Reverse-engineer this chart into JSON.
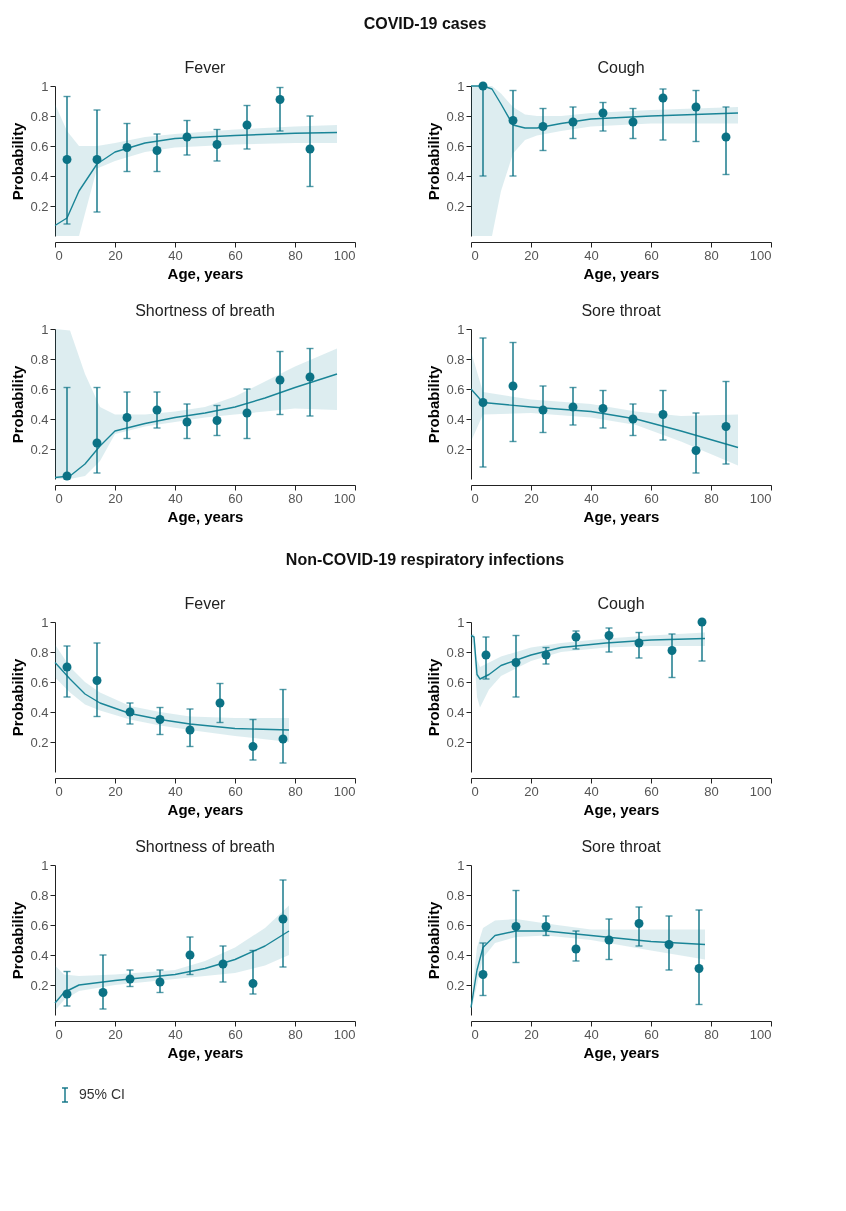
{
  "chart_data": [
    {
      "type": "scatter",
      "title": "Fever",
      "annotations": [
        "COVID-19 cases"
      ],
      "xlabel": "Age, years",
      "ylabel": "Probability",
      "xlim": [
        0,
        100
      ],
      "ylim": [
        0,
        1
      ],
      "xticks": [
        0,
        20,
        40,
        60,
        80,
        100
      ],
      "yticks": [
        0.2,
        0.4,
        0.6,
        0.8,
        1
      ],
      "series": [
        {
          "type": "line",
          "color": "#1a8597",
          "x": [
            0,
            4,
            8,
            14,
            20,
            30,
            40,
            60,
            80,
            94
          ],
          "values": [
            0.07,
            0.12,
            0.3,
            0.48,
            0.56,
            0.62,
            0.65,
            0.67,
            0.685,
            0.69
          ],
          "lower": [
            0,
            0,
            0,
            0.45,
            0.5,
            0.56,
            0.59,
            0.61,
            0.62,
            0.62
          ],
          "upper": [
            0.88,
            0.7,
            0.6,
            0.6,
            0.62,
            0.66,
            0.68,
            0.71,
            0.73,
            0.74
          ]
        },
        {
          "type": "scatter",
          "color": "#0b7285",
          "x": [
            4,
            14,
            24,
            34,
            44,
            54,
            64,
            75,
            85
          ],
          "values": [
            0.51,
            0.51,
            0.59,
            0.57,
            0.66,
            0.61,
            0.74,
            0.91,
            0.58
          ],
          "errors": [
            [
              0.08,
              0.93
            ],
            [
              0.16,
              0.84
            ],
            [
              0.43,
              0.75
            ],
            [
              0.43,
              0.68
            ],
            [
              0.54,
              0.77
            ],
            [
              0.5,
              0.71
            ],
            [
              0.58,
              0.87
            ],
            [
              0.7,
              0.99
            ],
            [
              0.33,
              0.8
            ]
          ]
        }
      ]
    },
    {
      "type": "scatter",
      "title": "Cough",
      "xlabel": "Age, years",
      "ylabel": "Probability",
      "xlim": [
        0,
        100
      ],
      "ylim": [
        0,
        1
      ],
      "xticks": [
        0,
        20,
        40,
        60,
        80,
        100
      ],
      "yticks": [
        0.2,
        0.4,
        0.6,
        0.8,
        1
      ],
      "series": [
        {
          "type": "line",
          "color": "#1a8597",
          "x": [
            0,
            4,
            7,
            10,
            14,
            18,
            22,
            30,
            40,
            60,
            89
          ],
          "values": [
            1,
            1,
            0.98,
            0.88,
            0.74,
            0.72,
            0.72,
            0.75,
            0.78,
            0.8,
            0.82
          ],
          "lower": [
            0,
            0,
            0,
            0.3,
            0.55,
            0.64,
            0.67,
            0.7,
            0.73,
            0.75,
            0.75
          ],
          "upper": [
            1,
            1,
            1,
            0.95,
            0.86,
            0.81,
            0.8,
            0.8,
            0.82,
            0.84,
            0.86
          ]
        },
        {
          "type": "scatter",
          "color": "#0b7285",
          "x": [
            4,
            14,
            24,
            34,
            44,
            54,
            64,
            75,
            85
          ],
          "values": [
            1,
            0.77,
            0.73,
            0.76,
            0.82,
            0.76,
            0.92,
            0.86,
            0.66
          ],
          "errors": [
            [
              0.4,
              1
            ],
            [
              0.4,
              0.97
            ],
            [
              0.57,
              0.85
            ],
            [
              0.65,
              0.86
            ],
            [
              0.7,
              0.89
            ],
            [
              0.65,
              0.85
            ],
            [
              0.64,
              0.98
            ],
            [
              0.63,
              0.97
            ],
            [
              0.41,
              0.86
            ]
          ]
        }
      ]
    },
    {
      "type": "scatter",
      "title": "Shortness of breath",
      "xlabel": "Age, years",
      "ylabel": "Probability",
      "xlim": [
        0,
        100
      ],
      "ylim": [
        0,
        1
      ],
      "xticks": [
        0,
        20,
        40,
        60,
        80,
        100
      ],
      "yticks": [
        0.2,
        0.4,
        0.6,
        0.8,
        1
      ],
      "series": [
        {
          "type": "line",
          "color": "#1a8597",
          "x": [
            0,
            5,
            10,
            15,
            20,
            30,
            40,
            50,
            60,
            70,
            80,
            94
          ],
          "values": [
            0.01,
            0.02,
            0.1,
            0.22,
            0.32,
            0.37,
            0.41,
            0.44,
            0.48,
            0.54,
            0.61,
            0.7
          ],
          "lower": [
            0,
            0,
            0.02,
            0.12,
            0.3,
            0.35,
            0.38,
            0.41,
            0.43,
            0.45,
            0.47,
            0.46
          ],
          "upper": [
            1,
            0.99,
            0.7,
            0.48,
            0.43,
            0.43,
            0.45,
            0.48,
            0.55,
            0.65,
            0.75,
            0.87
          ]
        },
        {
          "type": "scatter",
          "color": "#0b7285",
          "x": [
            4,
            14,
            24,
            34,
            44,
            54,
            64,
            75,
            85
          ],
          "values": [
            0.02,
            0.24,
            0.41,
            0.46,
            0.38,
            0.39,
            0.44,
            0.66,
            0.68
          ],
          "errors": [
            [
              0,
              0.61
            ],
            [
              0.04,
              0.61
            ],
            [
              0.27,
              0.58
            ],
            [
              0.34,
              0.58
            ],
            [
              0.27,
              0.5
            ],
            [
              0.29,
              0.49
            ],
            [
              0.27,
              0.6
            ],
            [
              0.43,
              0.85
            ],
            [
              0.42,
              0.87
            ]
          ]
        }
      ]
    },
    {
      "type": "scatter",
      "title": "Sore throat",
      "xlabel": "Age, years",
      "ylabel": "Probability",
      "xlim": [
        0,
        100
      ],
      "ylim": [
        0,
        1
      ],
      "xticks": [
        0,
        20,
        40,
        60,
        80,
        100
      ],
      "yticks": [
        0.2,
        0.4,
        0.6,
        0.8,
        1
      ],
      "series": [
        {
          "type": "line",
          "color": "#1a8597",
          "x": [
            0,
            4,
            20,
            40,
            55,
            70,
            89
          ],
          "values": [
            0.6,
            0.51,
            0.48,
            0.45,
            0.4,
            0.32,
            0.21
          ],
          "lower": [
            0.25,
            0.43,
            0.44,
            0.41,
            0.36,
            0.25,
            0.09
          ],
          "upper": [
            0.85,
            0.58,
            0.53,
            0.5,
            0.45,
            0.42,
            0.43
          ]
        },
        {
          "type": "scatter",
          "color": "#0b7285",
          "x": [
            4,
            14,
            24,
            34,
            44,
            54,
            64,
            75,
            85
          ],
          "values": [
            0.51,
            0.62,
            0.46,
            0.48,
            0.47,
            0.4,
            0.43,
            0.19,
            0.35
          ],
          "errors": [
            [
              0.08,
              0.94
            ],
            [
              0.25,
              0.91
            ],
            [
              0.31,
              0.62
            ],
            [
              0.36,
              0.61
            ],
            [
              0.34,
              0.59
            ],
            [
              0.29,
              0.5
            ],
            [
              0.26,
              0.59
            ],
            [
              0.04,
              0.44
            ],
            [
              0.1,
              0.65
            ]
          ]
        }
      ]
    },
    {
      "type": "scatter",
      "title": "Fever",
      "annotations": [
        "Non-COVID-19 respiratory infections"
      ],
      "xlabel": "Age, years",
      "ylabel": "Probability",
      "xlim": [
        0,
        100
      ],
      "ylim": [
        0,
        1
      ],
      "xticks": [
        0,
        20,
        40,
        60,
        80,
        100
      ],
      "yticks": [
        0.2,
        0.4,
        0.6,
        0.8,
        1
      ],
      "series": [
        {
          "type": "line",
          "color": "#1a8597",
          "x": [
            0,
            5,
            10,
            15,
            25,
            35,
            45,
            60,
            78
          ],
          "values": [
            0.73,
            0.62,
            0.52,
            0.46,
            0.39,
            0.35,
            0.32,
            0.29,
            0.28
          ],
          "lower": [
            0.63,
            0.53,
            0.45,
            0.41,
            0.35,
            0.31,
            0.28,
            0.24,
            0.2
          ],
          "upper": [
            0.85,
            0.7,
            0.6,
            0.53,
            0.44,
            0.4,
            0.37,
            0.36,
            0.36
          ]
        },
        {
          "type": "scatter",
          "color": "#0b7285",
          "x": [
            4,
            14,
            25,
            35,
            45,
            55,
            66,
            76
          ],
          "values": [
            0.7,
            0.61,
            0.4,
            0.35,
            0.28,
            0.46,
            0.17,
            0.22
          ],
          "errors": [
            [
              0.5,
              0.84
            ],
            [
              0.37,
              0.86
            ],
            [
              0.32,
              0.46
            ],
            [
              0.25,
              0.43
            ],
            [
              0.17,
              0.42
            ],
            [
              0.33,
              0.59
            ],
            [
              0.08,
              0.35
            ],
            [
              0.06,
              0.55
            ]
          ]
        }
      ]
    },
    {
      "type": "scatter",
      "title": "Cough",
      "xlabel": "Age, years",
      "ylabel": "Probability",
      "xlim": [
        0,
        100
      ],
      "ylim": [
        0,
        1
      ],
      "xticks": [
        0,
        20,
        40,
        60,
        80,
        100
      ],
      "yticks": [
        0.2,
        0.4,
        0.6,
        0.8,
        1
      ],
      "series": [
        {
          "type": "line",
          "color": "#1a8597",
          "x": [
            0,
            1,
            2,
            3,
            6,
            10,
            20,
            30,
            45,
            60,
            78
          ],
          "values": [
            0.91,
            0.9,
            0.65,
            0.62,
            0.65,
            0.71,
            0.78,
            0.83,
            0.86,
            0.88,
            0.89
          ],
          "lower": [
            0.9,
            0.8,
            0.5,
            0.43,
            0.55,
            0.64,
            0.74,
            0.8,
            0.83,
            0.84,
            0.84
          ],
          "upper": [
            0.92,
            0.92,
            0.75,
            0.7,
            0.73,
            0.77,
            0.83,
            0.86,
            0.89,
            0.91,
            0.93
          ]
        },
        {
          "type": "scatter",
          "color": "#0b7285",
          "x": [
            5,
            15,
            25,
            35,
            46,
            56,
            67,
            77
          ],
          "values": [
            0.78,
            0.73,
            0.78,
            0.9,
            0.91,
            0.86,
            0.81,
            1
          ],
          "errors": [
            [
              0.62,
              0.9
            ],
            [
              0.5,
              0.91
            ],
            [
              0.72,
              0.83
            ],
            [
              0.82,
              0.94
            ],
            [
              0.8,
              0.96
            ],
            [
              0.76,
              0.93
            ],
            [
              0.63,
              0.92
            ],
            [
              0.74,
              1
            ]
          ]
        }
      ]
    },
    {
      "type": "scatter",
      "title": "Shortness of breath",
      "xlabel": "Age, years",
      "ylabel": "Probability",
      "xlim": [
        0,
        100
      ],
      "ylim": [
        0,
        1
      ],
      "xticks": [
        0,
        20,
        40,
        60,
        80,
        100
      ],
      "yticks": [
        0.2,
        0.4,
        0.6,
        0.8,
        1
      ],
      "series": [
        {
          "type": "line",
          "color": "#1a8597",
          "x": [
            0,
            3,
            8,
            20,
            40,
            50,
            60,
            70,
            78
          ],
          "values": [
            0.08,
            0.15,
            0.2,
            0.23,
            0.27,
            0.31,
            0.37,
            0.46,
            0.56
          ],
          "lower": [
            0.03,
            0.1,
            0.16,
            0.2,
            0.24,
            0.26,
            0.28,
            0.33,
            0.4
          ],
          "upper": [
            0.33,
            0.27,
            0.26,
            0.27,
            0.3,
            0.36,
            0.45,
            0.58,
            0.73
          ]
        },
        {
          "type": "scatter",
          "color": "#0b7285",
          "x": [
            4,
            16,
            25,
            35,
            45,
            56,
            66,
            76
          ],
          "values": [
            0.14,
            0.15,
            0.24,
            0.22,
            0.4,
            0.34,
            0.21,
            0.64
          ],
          "errors": [
            [
              0.06,
              0.29
            ],
            [
              0.04,
              0.4
            ],
            [
              0.19,
              0.3
            ],
            [
              0.15,
              0.3
            ],
            [
              0.27,
              0.52
            ],
            [
              0.22,
              0.46
            ],
            [
              0.14,
              0.43
            ],
            [
              0.32,
              0.9
            ]
          ]
        }
      ]
    },
    {
      "type": "scatter",
      "title": "Sore throat",
      "xlabel": "Age, years",
      "ylabel": "Probability",
      "xlim": [
        0,
        100
      ],
      "ylim": [
        0,
        1
      ],
      "xticks": [
        0,
        20,
        40,
        60,
        80,
        100
      ],
      "yticks": [
        0.2,
        0.4,
        0.6,
        0.8,
        1
      ],
      "legend": "bottom left",
      "series": [
        {
          "type": "line",
          "color": "#1a8597",
          "x": [
            0,
            2,
            4,
            8,
            15,
            25,
            40,
            60,
            78
          ],
          "values": [
            0.05,
            0.3,
            0.45,
            0.53,
            0.56,
            0.56,
            0.53,
            0.49,
            0.47
          ],
          "lower": [
            0.02,
            0.2,
            0.38,
            0.48,
            0.52,
            0.53,
            0.5,
            0.43,
            0.37
          ],
          "upper": [
            0.1,
            0.45,
            0.58,
            0.63,
            0.64,
            0.61,
            0.57,
            0.57,
            0.57
          ]
        },
        {
          "type": "scatter",
          "name": "95% CI",
          "color": "#0b7285",
          "x": [
            4,
            15,
            25,
            35,
            46,
            56,
            66,
            76
          ],
          "values": [
            0.27,
            0.59,
            0.59,
            0.44,
            0.5,
            0.61,
            0.47,
            0.31
          ],
          "errors": [
            [
              0.13,
              0.48
            ],
            [
              0.35,
              0.83
            ],
            [
              0.53,
              0.66
            ],
            [
              0.36,
              0.56
            ],
            [
              0.37,
              0.64
            ],
            [
              0.46,
              0.72
            ],
            [
              0.3,
              0.66
            ],
            [
              0.07,
              0.7
            ]
          ]
        }
      ]
    }
  ]
}
